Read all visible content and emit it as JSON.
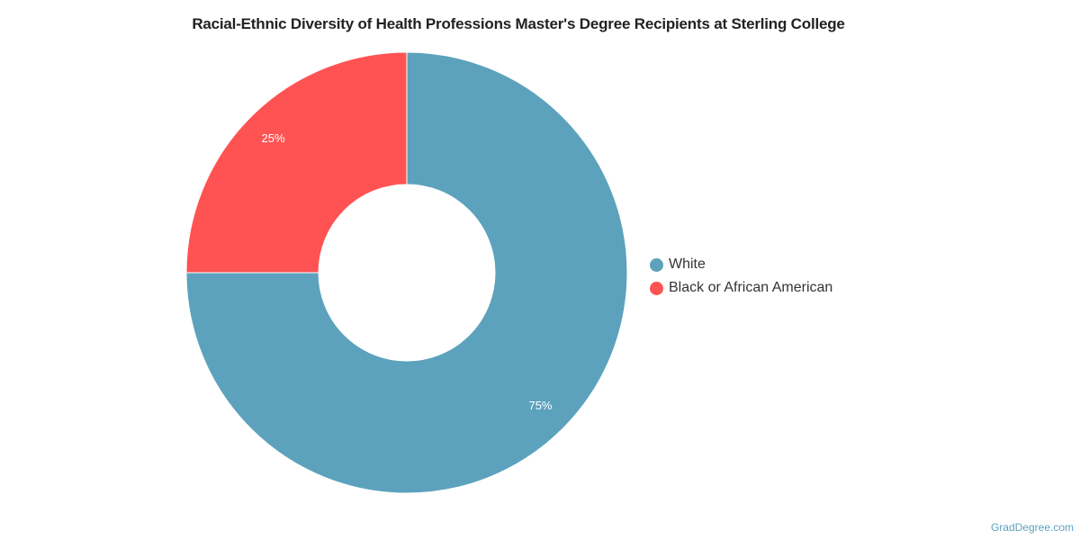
{
  "chart_data": {
    "type": "pie",
    "title": "Racial-Ethnic Diversity of Health Professions Master's Degree Recipients at Sterling College",
    "slices": [
      {
        "label": "White",
        "value": 75,
        "display": "75%",
        "color": "#5ca2bd"
      },
      {
        "label": "Black or African American",
        "value": 25,
        "display": "25%",
        "color": "#ff5353"
      }
    ],
    "donut": true,
    "legend_position": "right"
  },
  "credit": "GradDegree.com"
}
